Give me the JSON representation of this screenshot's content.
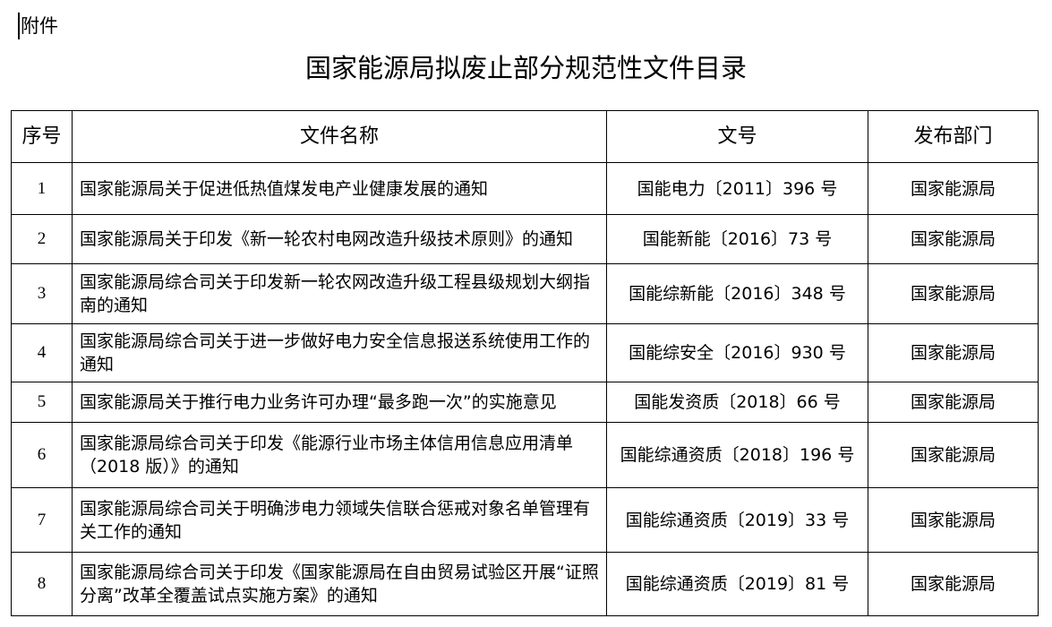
{
  "attachment_label": "附件",
  "title": "国家能源局拟废止部分规范性文件目录",
  "table": {
    "headers": [
      "序号",
      "文件名称",
      "文号",
      "发布部门"
    ],
    "rows": [
      {
        "no": "1",
        "name": "国家能源局关于促进低热值煤发电产业健康发展的通知",
        "doc": "国能电力〔2011〕396 号",
        "dept": "国家能源局"
      },
      {
        "no": "2",
        "name": "国家能源局关于印发《新一轮农村电网改造升级技术原则》的通知",
        "doc": "国能新能〔2016〕73 号",
        "dept": "国家能源局"
      },
      {
        "no": "3",
        "name": "国家能源局综合司关于印发新一轮农网改造升级工程县级规划大纲指南的通知",
        "doc": "国能综新能〔2016〕348 号",
        "dept": "国家能源局"
      },
      {
        "no": "4",
        "name": "国家能源局综合司关于进一步做好电力安全信息报送系统使用工作的通知",
        "doc": "国能综安全〔2016〕930 号",
        "dept": "国家能源局"
      },
      {
        "no": "5",
        "name": "国家能源局关于推行电力业务许可办理“最多跑一次”的实施意见",
        "doc": "国能发资质〔2018〕66 号",
        "dept": "国家能源局"
      },
      {
        "no": "6",
        "name": "国家能源局综合司关于印发《能源行业市场主体信用信息应用清单（2018 版）》的通知",
        "doc": "国能综通资质〔2018〕196 号",
        "dept": "国家能源局"
      },
      {
        "no": "7",
        "name": "国家能源局综合司关于明确涉电力领域失信联合惩戒对象名单管理有关工作的通知",
        "doc": "国能综通资质〔2019〕33 号",
        "dept": "国家能源局"
      },
      {
        "no": "8",
        "name": "国家能源局综合司关于印发《国家能源局在自由贸易试验区开展“证照分离”改革全覆盖试点实施方案》的通知",
        "doc": "国能综通资质〔2019〕81 号",
        "dept": "国家能源局"
      }
    ]
  }
}
